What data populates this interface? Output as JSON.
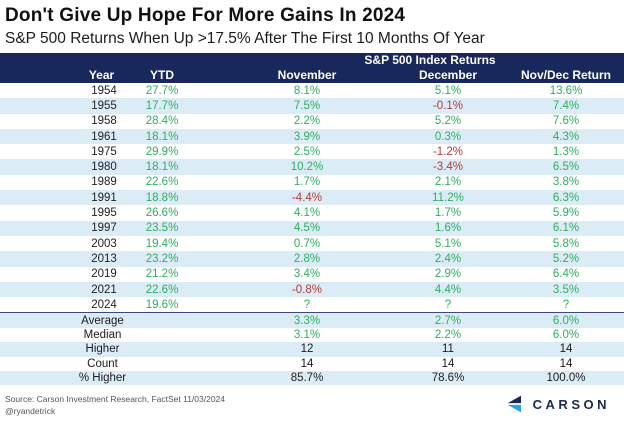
{
  "title": "Don't Give Up Hope For More Gains In 2024",
  "subtitle": "S&P 500 Returns When Up >17.5% After The First 10 Months Of Year",
  "table": {
    "group_header": "S&P 500 Index Returns",
    "columns": [
      "Year",
      "YTD",
      "November",
      "December",
      "Nov/Dec Return"
    ],
    "rows": [
      {
        "year": "1954",
        "ytd": "27.7%",
        "november": "8.1%",
        "december": "5.1%",
        "novdec": "13.6%"
      },
      {
        "year": "1955",
        "ytd": "17.7%",
        "november": "7.5%",
        "december": "-0.1%",
        "novdec": "7.4%"
      },
      {
        "year": "1958",
        "ytd": "28.4%",
        "november": "2.2%",
        "december": "5.2%",
        "novdec": "7.6%"
      },
      {
        "year": "1961",
        "ytd": "18.1%",
        "november": "3.9%",
        "december": "0.3%",
        "novdec": "4.3%"
      },
      {
        "year": "1975",
        "ytd": "29.9%",
        "november": "2.5%",
        "december": "-1.2%",
        "novdec": "1.3%"
      },
      {
        "year": "1980",
        "ytd": "18.1%",
        "november": "10.2%",
        "december": "-3.4%",
        "novdec": "6.5%"
      },
      {
        "year": "1989",
        "ytd": "22.6%",
        "november": "1.7%",
        "december": "2.1%",
        "novdec": "3.8%"
      },
      {
        "year": "1991",
        "ytd": "18.8%",
        "november": "-4.4%",
        "december": "11.2%",
        "novdec": "6.3%"
      },
      {
        "year": "1995",
        "ytd": "26.6%",
        "november": "4.1%",
        "december": "1.7%",
        "novdec": "5.9%"
      },
      {
        "year": "1997",
        "ytd": "23.5%",
        "november": "4.5%",
        "december": "1.6%",
        "novdec": "6.1%"
      },
      {
        "year": "2003",
        "ytd": "19.4%",
        "november": "0.7%",
        "december": "5.1%",
        "novdec": "5.8%"
      },
      {
        "year": "2013",
        "ytd": "23.2%",
        "november": "2.8%",
        "december": "2.4%",
        "novdec": "5.2%"
      },
      {
        "year": "2019",
        "ytd": "21.2%",
        "november": "3.4%",
        "december": "2.9%",
        "novdec": "6.4%"
      },
      {
        "year": "2021",
        "ytd": "22.6%",
        "november": "-0.8%",
        "december": "4.4%",
        "novdec": "3.5%"
      },
      {
        "year": "2024",
        "ytd": "19.6%",
        "november": "?",
        "december": "?",
        "novdec": "?"
      }
    ],
    "summary": [
      {
        "label": "Average",
        "november": "3.3%",
        "december": "2.7%",
        "novdec": "6.0%",
        "value_color": "green"
      },
      {
        "label": "Median",
        "november": "3.1%",
        "december": "2.2%",
        "novdec": "6.0%",
        "value_color": "green"
      },
      {
        "label": "Higher",
        "november": "12",
        "december": "11",
        "novdec": "14",
        "value_color": "black"
      },
      {
        "label": "Count",
        "november": "14",
        "december": "14",
        "novdec": "14",
        "value_color": "black"
      },
      {
        "label": "% Higher",
        "november": "85.7%",
        "december": "78.6%",
        "novdec": "100.0%",
        "value_color": "black"
      }
    ]
  },
  "footer": {
    "source": "Source: Carson Investment Research, FactSet 11/03/2024",
    "handle": "@ryandetrick",
    "logo_text": "CARSON"
  },
  "colors": {
    "header_navy": "#18285b",
    "positive_green": "#2eae60",
    "negative_red": "#b23a38",
    "row_alt_blue": "#dcecf7",
    "logo_navy": "#1b2a4e",
    "logo_light_blue": "#2ca0e8"
  },
  "chart_data": {
    "type": "table",
    "title": "Don't Give Up Hope For More Gains In 2024",
    "subtitle": "S&P 500 Returns When Up >17.5% After The First 10 Months Of Year",
    "group_header": "S&P 500 Index Returns",
    "columns": [
      "Year",
      "YTD",
      "November",
      "December",
      "Nov/Dec Return"
    ],
    "rows": [
      [
        1954,
        27.7,
        8.1,
        5.1,
        13.6
      ],
      [
        1955,
        17.7,
        7.5,
        -0.1,
        7.4
      ],
      [
        1958,
        28.4,
        2.2,
        5.2,
        7.6
      ],
      [
        1961,
        18.1,
        3.9,
        0.3,
        4.3
      ],
      [
        1975,
        29.9,
        2.5,
        -1.2,
        1.3
      ],
      [
        1980,
        18.1,
        10.2,
        -3.4,
        6.5
      ],
      [
        1989,
        22.6,
        1.7,
        2.1,
        3.8
      ],
      [
        1991,
        18.8,
        -4.4,
        11.2,
        6.3
      ],
      [
        1995,
        26.6,
        4.1,
        1.7,
        5.9
      ],
      [
        1997,
        23.5,
        4.5,
        1.6,
        6.1
      ],
      [
        2003,
        19.4,
        0.7,
        5.1,
        5.8
      ],
      [
        2013,
        23.2,
        2.8,
        2.4,
        5.2
      ],
      [
        2019,
        21.2,
        3.4,
        2.9,
        6.4
      ],
      [
        2021,
        22.6,
        -0.8,
        4.4,
        3.5
      ],
      [
        2024,
        19.6,
        "?",
        "?",
        "?"
      ]
    ],
    "summary": {
      "average": [
        3.3,
        2.7,
        6.0
      ],
      "median": [
        3.1,
        2.2,
        6.0
      ],
      "higher": [
        12,
        11,
        14
      ],
      "count": [
        14,
        14,
        14
      ],
      "pct_higher": [
        85.7,
        78.6,
        100.0
      ]
    }
  }
}
